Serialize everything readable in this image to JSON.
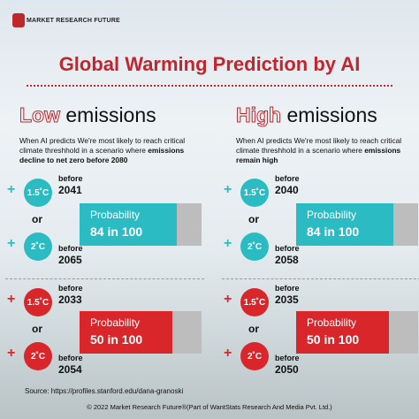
{
  "logo": "MARKET RESEARCH FUTURE",
  "title": "Global Warming Prediction by AI",
  "columns": [
    {
      "heading_emph": "Low",
      "heading": "emissions",
      "description": "When AI predicts We're most likely to reach critical climate threshhold in a scenario where ",
      "description_bold": "emissions decline to net zero before 2080",
      "scenarios": [
        {
          "color": "#2bbcc3",
          "temp1": "1.5˚C",
          "year1": "2041",
          "temp2": "2˚C",
          "year2": "2065",
          "probability": "84 in 100"
        },
        {
          "color": "#d9262b",
          "temp1": "1.5˚C",
          "year1": "2033",
          "temp2": "2˚C",
          "year2": "2054",
          "probability": "50 in 100"
        }
      ]
    },
    {
      "heading_emph": "High",
      "heading": "emissions",
      "description": "When AI predicts We're most likely to reach critical climate threshhold in a scenario where ",
      "description_bold": "emissions remain high",
      "scenarios": [
        {
          "color": "#2bbcc3",
          "temp1": "1.5˚C",
          "year1": "2040",
          "temp2": "2˚C",
          "year2": "2058",
          "probability": "84 in 100"
        },
        {
          "color": "#d9262b",
          "temp1": "1.5˚C",
          "year1": "2035",
          "temp2": "2˚C",
          "year2": "2050",
          "probability": "50 in 100"
        }
      ]
    }
  ],
  "plus": "+",
  "before": "before",
  "or": "or",
  "probability_label": "Probability",
  "source": "Source: https://profiles.stanford.edu/dana-granoski",
  "footer": "© 2022 Market Research Future®(Part of WantStats Research And Media Pvt. Ltd.)"
}
